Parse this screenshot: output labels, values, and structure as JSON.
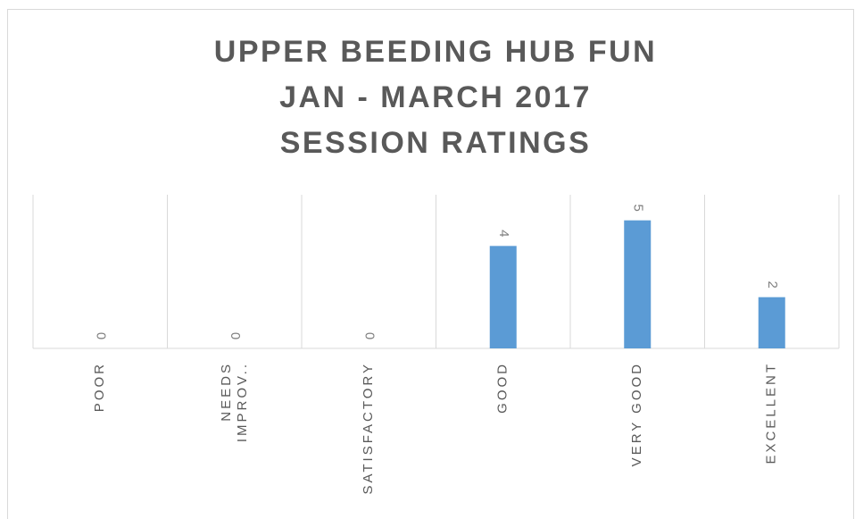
{
  "chart_data": {
    "type": "bar",
    "title": [
      "UPPER BEEDING HUB FUN",
      "JAN - MARCH 2017",
      "SESSION RATINGS"
    ],
    "categories": [
      "POOR",
      "NEEDS IMPROV..",
      "SATISFACTORY",
      "GOOD",
      "VERY GOOD",
      "EXCELLENT"
    ],
    "values": [
      0,
      0,
      0,
      4,
      5,
      2
    ],
    "color": "#5b9bd5",
    "ylim": [
      0,
      6
    ]
  }
}
